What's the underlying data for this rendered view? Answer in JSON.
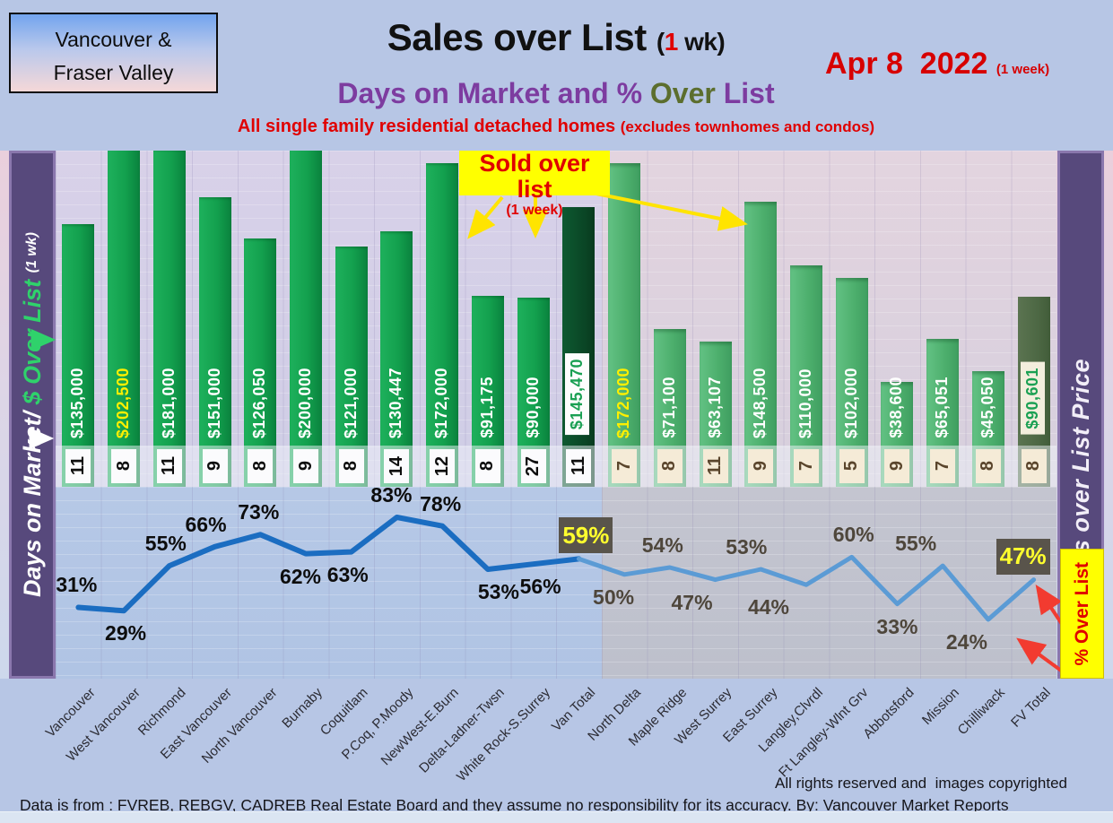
{
  "header": {
    "region_label_line1": "Vancouver &",
    "region_label_line2": "Fraser Valley",
    "title_main": "Sales over List",
    "title_open_paren": "(",
    "title_week_red": "1",
    "title_week_tail": " wk)",
    "date_main": "Apr 8  2022",
    "date_note": "(1 week)",
    "subtitle_part1": "Days on Market and % ",
    "subtitle_over": "Over",
    "subtitle_part2": " List",
    "tagline_main": "All single family residential detached homes ",
    "tagline_note": "(excludes townhomes and condos)"
  },
  "left_axis": {
    "label_dom": "Days on Market/",
    "label_over": " $ Over List ",
    "label_note": "(1 wk)"
  },
  "right_axis": {
    "label": "Sales over List Price",
    "pct_box": "% Over List"
  },
  "callout": {
    "title": "Sold over list",
    "note": "(1 week)"
  },
  "footer": {
    "rights": "All rights reserved and  images copyrighted",
    "source": "Data is from : FVREB, REBGV, CADREB Real Estate Board and they assume no responsibility for its accuracy. By: Vancouver Market Reports"
  },
  "colors": {
    "van_bar": "#13a04e",
    "fv_bar": "#4cae6c",
    "van_total_bar": "#0a4525",
    "fv_total_bar": "#4c6743",
    "line_van": "#1b6dc1",
    "line_fv": "#5b9bd5",
    "accent_red": "#e00000",
    "accent_yellow": "#ffff00",
    "subtitle_purple": "#7d3ca0",
    "subtitle_olive": "#5c6e2e",
    "sidebar_purple": "#57497c"
  },
  "chart_data": {
    "type": "bar+line",
    "title": "Sales over List (1 wk) - Days on Market and % Over List",
    "categories": [
      "Vancouver",
      "West Vancouver",
      "Richmond",
      "East Vancouver",
      "North Vancouver",
      "Burnaby",
      "Coquitlam",
      "P.Coq, P.Moody",
      "NewWest-E.Burn",
      "Delta-Ladner-Twsn",
      "White Rock-S.Surrey",
      "Van Total",
      "North Delta",
      "Maple Ridge",
      "West Surrey",
      "East Surrey",
      "Langley,Clvrdl",
      "Ft Langley-Wlnt Grv",
      "Abbotsford",
      "Mission",
      "Chilliwack",
      "FV Total"
    ],
    "series": [
      {
        "name": "$ Over List (1 wk)",
        "type": "bar",
        "values": [
          135000,
          202500,
          181000,
          151000,
          126050,
          200000,
          121000,
          130447,
          172000,
          91175,
          90000,
          145470,
          172000,
          71100,
          63107,
          148500,
          110000,
          102000,
          38600,
          65051,
          45050,
          90601
        ],
        "labels": [
          "$135,000",
          "$202,500",
          "$181,000",
          "$151,000",
          "$126,050",
          "$200,000",
          "$121,000",
          "$130,447",
          "$172,000",
          "$91,175",
          "$90,000",
          "$145,470",
          "$172,000",
          "$71,100",
          "$63,107",
          "$148,500",
          "$110,000",
          "$102,000",
          "$38,600",
          "$65,051",
          "$45,050",
          "$90,601"
        ]
      },
      {
        "name": "Days on Market",
        "type": "chips",
        "values": [
          11,
          8,
          11,
          9,
          8,
          9,
          8,
          14,
          12,
          8,
          27,
          11,
          7,
          8,
          11,
          9,
          7,
          5,
          9,
          7,
          8,
          8
        ]
      },
      {
        "name": "% Over List",
        "type": "line",
        "values": [
          31,
          29,
          55,
          66,
          73,
          62,
          63,
          83,
          78,
          53,
          56,
          59,
          50,
          54,
          47,
          53,
          44,
          60,
          33,
          55,
          24,
          47
        ],
        "labels": [
          "31%",
          "29%",
          "55%",
          "66%",
          "73%",
          "62%",
          "63%",
          "83%",
          "78%",
          "53%",
          "56%",
          "59%",
          "50%",
          "54%",
          "47%",
          "53%",
          "44%",
          "60%",
          "33%",
          "55%",
          "24%",
          "47%"
        ]
      }
    ],
    "region_split_index": 12,
    "total_indices": [
      11,
      21
    ],
    "yellow_label_indices": [
      1,
      12
    ],
    "highlight_chip_indices": [
      11,
      21
    ],
    "bar_axis_implied_max": 180000,
    "grid": true,
    "legend_position": "none"
  }
}
